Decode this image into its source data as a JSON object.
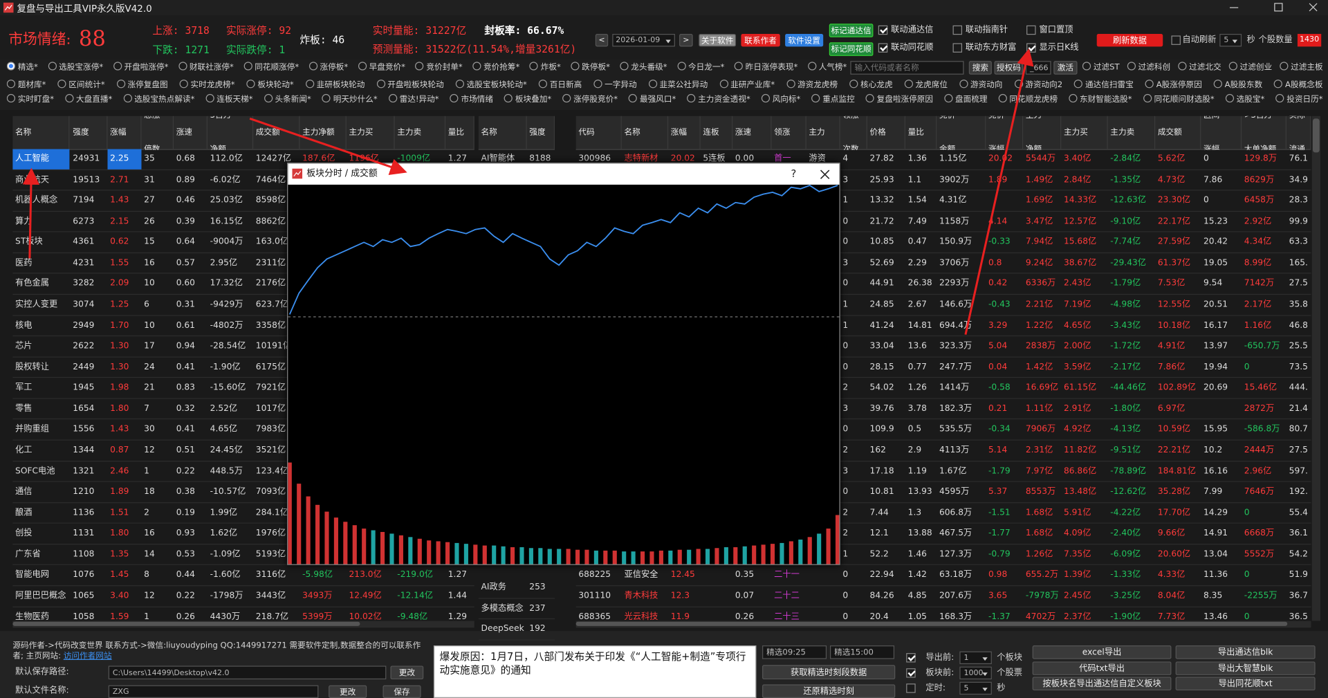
{
  "window": {
    "title": "复盘与导出工具VIP永久版V42.0"
  },
  "header": {
    "sentiment_label": "市场情绪:",
    "sentiment_value": "88",
    "up": "上涨: 3718",
    "limit_up": "实际涨停: 92",
    "down": "下跌: 1271",
    "limit_down": "实际跌停: 1",
    "broken": "炸板: 46",
    "volume_now": "实时量能: 31227亿",
    "seal_rate": "封板率:  66.67%",
    "volume_forecast": "预测量能: 31522亿(11.54%,增量3261亿)"
  },
  "toolbar": {
    "prev": "<",
    "date": "2026-01-09",
    "next": ">",
    "about": "关于软件",
    "contact": "联系作者",
    "settings": "软件设置",
    "mark_tdx": "标记通达信",
    "mark_ths": "标记同花顺",
    "checks": [
      {
        "label": "联动通达信",
        "checked": true
      },
      {
        "label": "联动同花顺",
        "checked": true
      },
      {
        "label": "联动指南针",
        "checked": false
      },
      {
        "label": "联动东方财富",
        "checked": false
      },
      {
        "label": "窗口置顶",
        "checked": false
      },
      {
        "label": "显示日K线",
        "checked": true
      }
    ],
    "refresh": "刷新数据",
    "auto_refresh": "自动刷新",
    "interval": "5",
    "seconds": "秒",
    "stock_count_label": "个股数量",
    "stock_count": "1430"
  },
  "menu": {
    "row1": [
      "精选*",
      "选股宝涨停*",
      "开盘啦涨停*",
      "财联社涨停*",
      "同花顺涨停*",
      "涨停板*",
      "早盘竞价*",
      "竞价封单*",
      "竞价抢筹*",
      "炸板*",
      "跌停板*",
      "龙头番级*",
      "今日龙一*",
      "昨日涨停表现*",
      "人气榜*"
    ],
    "row1_selected": 0,
    "search_placeholder": "输入代码或者名称",
    "search": "搜索",
    "auth_label": "授权码",
    "auth_code": "_666",
    "activate": "激活",
    "filters": [
      "过滤ST",
      "过滤科创",
      "过滤北交",
      "过滤创业",
      "过滤主板"
    ],
    "row2": [
      "题材库*",
      "区间统计*",
      "涨停复盘图",
      "实时龙虎榜*",
      "板块轮动*",
      "韭研板块轮动",
      "开盘啦板块轮动",
      "选股宝板块轮动*",
      "百日新高",
      "一字异动",
      "韭菜公社异动",
      "韭研产业库*",
      "游资龙虎榜",
      "核心龙虎",
      "龙虎席位",
      "游资动向",
      "游资动向2",
      "通达信扫雷宝",
      "A股涨停原因",
      "A股股东数",
      "A股概念板"
    ],
    "row3": [
      "实时盯盘*",
      "大盘直播*",
      "选股宝热点解读*",
      "连板天梯*",
      "头条新闻*",
      "明天炒什么*",
      "雷达!异动*",
      "市场情绪",
      "板块叠加*",
      "涨停股竞价*",
      "最强风口*",
      "主力资金透视*",
      "风向标*",
      "重点监控",
      "复盘啦涨停原因",
      "盘面梳理",
      "同花顺龙虎榜",
      "东财智能选股*",
      "同花顺问财选股*",
      "选股宝*",
      "投资日历*"
    ]
  },
  "sector_table": {
    "headers": [
      "名称",
      "强度",
      "涨幅",
      "总涨\n停数",
      "涨速",
      "3百万\n净额",
      "成交额",
      "主力净额",
      "主力买",
      "主力卖",
      "量比"
    ],
    "rows": [
      [
        "人工智能",
        "24931",
        "2.25",
        "35",
        "0.68",
        "112.0亿",
        "12427亿",
        "187.6亿",
        "1196亿",
        "-1009亿",
        "1.27"
      ],
      [
        "商业航天",
        "19513",
        "2.71",
        "31",
        "0.89",
        "-6.02亿",
        "7464亿",
        null,
        null,
        null,
        null
      ],
      [
        "机器人概念",
        "7194",
        "1.43",
        "27",
        "0.46",
        "25.03亿",
        "8598亿",
        null,
        null,
        null,
        null
      ],
      [
        "算力",
        "6273",
        "2.15",
        "26",
        "0.39",
        "16.15亿",
        "8862亿",
        null,
        null,
        null,
        null
      ],
      [
        "ST板块",
        "4361",
        "0.62",
        "15",
        "0.64",
        "-9004万",
        "163.0亿",
        null,
        null,
        null,
        null
      ],
      [
        "医药",
        "4231",
        "1.55",
        "16",
        "0.57",
        "2.95亿",
        "2311亿",
        null,
        null,
        null,
        null
      ],
      [
        "有色金属",
        "3282",
        "2.09",
        "10",
        "0.60",
        "17.32亿",
        "2176亿",
        null,
        null,
        null,
        null
      ],
      [
        "实控人变更",
        "3074",
        "1.25",
        "6",
        "0.31",
        "-9429万",
        "623.7亿",
        null,
        null,
        null,
        null
      ],
      [
        "核电",
        "2949",
        "1.70",
        "10",
        "0.61",
        "-4802万",
        "3358亿",
        null,
        null,
        null,
        null
      ],
      [
        "芯片",
        "2622",
        "1.30",
        "17",
        "0.94",
        "-28.54亿",
        "10191亿",
        null,
        null,
        null,
        null
      ],
      [
        "股权转让",
        "2449",
        "1.30",
        "24",
        "0.41",
        "-1.90亿",
        "6175亿",
        null,
        null,
        null,
        null
      ],
      [
        "军工",
        "1945",
        "1.98",
        "21",
        "0.83",
        "-15.60亿",
        "7921亿",
        null,
        null,
        null,
        null
      ],
      [
        "零售",
        "1654",
        "1.80",
        "7",
        "0.32",
        "2.52亿",
        "1017亿",
        null,
        null,
        null,
        null
      ],
      [
        "并购重组",
        "1556",
        "1.43",
        "30",
        "0.41",
        "4.65亿",
        "7983亿",
        null,
        null,
        null,
        null
      ],
      [
        "化工",
        "1344",
        "0.87",
        "12",
        "0.51",
        "24.45亿",
        "3521亿",
        null,
        null,
        null,
        null
      ],
      [
        "SOFC电池",
        "1321",
        "2.46",
        "1",
        "0.22",
        "448.5万",
        "123.4亿",
        null,
        null,
        null,
        null
      ],
      [
        "通信",
        "1210",
        "1.89",
        "18",
        "0.38",
        "-10.57亿",
        "7093亿",
        null,
        null,
        null,
        null
      ],
      [
        "酿酒",
        "1136",
        "1.51",
        "2",
        "0.19",
        "1.99亿",
        "284.1亿",
        null,
        null,
        null,
        null
      ],
      [
        "创投",
        "1131",
        "1.80",
        "16",
        "0.93",
        "1.62亿",
        "1976亿",
        null,
        null,
        null,
        null
      ],
      [
        "广东省",
        "1108",
        "1.35",
        "14",
        "0.53",
        "-1.09亿",
        "5193亿",
        null,
        null,
        null,
        null
      ],
      [
        "智能电网",
        "1076",
        "1.45",
        "8",
        "0.44",
        "-1.60亿",
        "3116亿",
        "-5.98亿",
        "213.0亿",
        "-219.0亿",
        "1.27"
      ],
      [
        "阿里巴巴概念",
        "1065",
        "3.40",
        "12",
        "0.22",
        "-1798万",
        "3443亿",
        "3493万",
        "12.49亿",
        "-12.14亿",
        "1.44"
      ],
      [
        "生物医药",
        "1058",
        "1.59",
        "1",
        "0.26",
        "4430万",
        "218.7亿",
        "5399万",
        "10.02亿",
        "-9.48亿",
        "1.29"
      ]
    ]
  },
  "sub_table": {
    "headers": [
      "名称",
      "强度"
    ],
    "rows_top": [
      [
        "AI智能体",
        "8188"
      ]
    ],
    "rows_bottom": [
      [
        "AI政务",
        "253"
      ],
      [
        "多模态概念",
        "237"
      ],
      [
        "DeepSeek",
        "192"
      ]
    ]
  },
  "stock_table": {
    "headers": [
      "代码",
      "名称",
      "涨幅",
      "连板",
      "涨速",
      "领涨",
      "主力",
      "领涨\n次数",
      "价格",
      "量比",
      "竞价\n金额",
      "竞价\n涨幅",
      "主力\n净额",
      "主力买",
      "主力卖",
      "成交额",
      "区间\n涨幅",
      ">3百万\n大单净额",
      "实际\n流通"
    ],
    "rows": [
      [
        "300986",
        "志特新材",
        "20.02",
        "5连板",
        "0.00",
        "首一",
        "游资",
        "4",
        "27.82",
        "1.36",
        "1.15亿",
        "20.02",
        "5544万",
        "3.40亿",
        "-2.84亿",
        "5.62亿",
        "0",
        "129.8万",
        "76.1"
      ],
      [
        null,
        null,
        null,
        null,
        null,
        null,
        null,
        "3",
        "25.93",
        "1.1",
        "3902万",
        "1.89",
        "1.49亿",
        "2.84亿",
        "-1.35亿",
        "4.73亿",
        "7.86",
        "8629万",
        "34.9"
      ],
      [
        null,
        null,
        null,
        null,
        null,
        null,
        null,
        "1",
        "13.32",
        "1.54",
        "4.31亿",
        null,
        "1.69亿",
        "14.33亿",
        "-12.63亿",
        "23.30亿",
        "0",
        "6458万",
        "28.3"
      ],
      [
        null,
        null,
        null,
        null,
        null,
        null,
        null,
        "0",
        "21.72",
        "7.49",
        "1158万",
        "4.14",
        "3.47亿",
        "12.57亿",
        "-9.10亿",
        "22.17亿",
        "15.23",
        "2.92亿",
        "99.9"
      ],
      [
        null,
        null,
        null,
        null,
        null,
        null,
        null,
        "0",
        "10.85",
        "0.47",
        "150.9万",
        "-0.33",
        "7.94亿",
        "15.68亿",
        "-7.74亿",
        "27.59亿",
        "20.42",
        "4.34亿",
        "63.3"
      ],
      [
        null,
        null,
        null,
        null,
        null,
        null,
        null,
        "3",
        "52.69",
        "2.29",
        "3706万",
        "0.8",
        "9.24亿",
        "38.67亿",
        "-29.43亿",
        "61.37亿",
        "19.05",
        "8.99亿",
        "165."
      ],
      [
        null,
        null,
        null,
        null,
        null,
        null,
        null,
        "0",
        "44.91",
        "26.38",
        "2293万",
        "0.42",
        "6336万",
        "2.43亿",
        "-1.79亿",
        "7.53亿",
        "9.54",
        "7142万",
        "27.5"
      ],
      [
        null,
        null,
        null,
        null,
        null,
        null,
        null,
        "1",
        "24.85",
        "2.67",
        "146.6万",
        "-0.43",
        "2.21亿",
        "7.19亿",
        "-4.98亿",
        "12.55亿",
        "20.51",
        "2.17亿",
        "35.8"
      ],
      [
        null,
        null,
        null,
        null,
        null,
        null,
        null,
        "1",
        "41.24",
        "14.81",
        "694.4万",
        "3.29",
        "1.22亿",
        "4.65亿",
        "-3.43亿",
        "10.18亿",
        "16.17",
        "1.16亿",
        "46.8"
      ],
      [
        null,
        null,
        null,
        null,
        null,
        null,
        null,
        "0",
        "33.04",
        "13.6",
        "323.3万",
        "5.04",
        "2838万",
        "2.00亿",
        "-1.72亿",
        "4.91亿",
        "13.97",
        "-650.7万",
        "25.5"
      ],
      [
        null,
        null,
        null,
        null,
        null,
        null,
        null,
        "0",
        "28.15",
        "0.77",
        "247.7万",
        "0.04",
        "1.42亿",
        "3.59亿",
        "-2.17亿",
        "7.86亿",
        "19.94",
        "0",
        "73.5"
      ],
      [
        null,
        null,
        null,
        null,
        null,
        null,
        null,
        "2",
        "54.02",
        "1.26",
        "1414万",
        "-0.58",
        "16.69亿",
        "61.15亿",
        "-44.46亿",
        "102.89亿",
        "20.69",
        "15.46亿",
        "444."
      ],
      [
        null,
        null,
        null,
        null,
        null,
        null,
        null,
        "3",
        "39.76",
        "3.78",
        "182.3万",
        "0.21",
        "1.11亿",
        "2.91亿",
        "-1.80亿",
        "6.97亿",
        null,
        "2872万",
        "21.4"
      ],
      [
        null,
        null,
        null,
        null,
        null,
        null,
        null,
        "0",
        "109.9",
        "0.5",
        "535.5万",
        "-0.34",
        "7906万",
        "4.92亿",
        "-4.13亿",
        "10.59亿",
        "15.95",
        "-586.8万",
        "80.7"
      ],
      [
        null,
        null,
        null,
        null,
        null,
        null,
        null,
        "2",
        "162",
        "2.9",
        "4113万",
        "5.14",
        "2.31亿",
        "11.82亿",
        "-9.51亿",
        "22.21亿",
        "10.2",
        "2444万",
        "27.5"
      ],
      [
        null,
        null,
        null,
        null,
        null,
        null,
        null,
        "3",
        "17.18",
        "1.19",
        "1.67亿",
        "-1.79",
        "7.97亿",
        "86.86亿",
        "-78.89亿",
        "184.81亿",
        "16.16",
        "2.96亿",
        "597."
      ],
      [
        null,
        null,
        null,
        null,
        null,
        null,
        null,
        "0",
        "10.81",
        "13.93",
        "4595万",
        "5.37",
        "8553万",
        "13.48亿",
        "-12.62亿",
        "35.28亿",
        "7.99",
        "7646万",
        "192."
      ],
      [
        null,
        null,
        null,
        null,
        null,
        null,
        null,
        "2",
        "7.44",
        "1.3",
        "606.8万",
        "-1.51",
        "1.68亿",
        "5.91亿",
        "-4.22亿",
        "17.70亿",
        "14.29",
        "0",
        "55.4"
      ],
      [
        null,
        null,
        null,
        null,
        null,
        null,
        null,
        "2",
        "12.1",
        "13.88",
        "467.5万",
        "-1.77",
        "1.68亿",
        "4.09亿",
        "-2.40亿",
        "9.66亿",
        "14.91",
        "6668万",
        "36.1"
      ],
      [
        null,
        null,
        null,
        null,
        null,
        null,
        null,
        "1",
        "52.2",
        "1.46",
        "127.3万",
        "-0.79",
        "1.26亿",
        "7.35亿",
        "-6.09亿",
        "20.60亿",
        "13.04",
        "5552万",
        "54.2"
      ],
      [
        "688225",
        "亚信安全",
        "12.45",
        null,
        "0.35",
        "二十一",
        null,
        "0",
        "22.94",
        "1.42",
        "63.18万",
        "0.98",
        "655.2万",
        "1.39亿",
        "-1.33亿",
        "4.33亿",
        "11.36",
        "0",
        "51.9"
      ],
      [
        "301110",
        "青木科技",
        "12.3",
        null,
        "0.07",
        "二十二",
        null,
        "0",
        "84.26",
        "4.85",
        "207.6万",
        "3.65",
        "-7978万",
        "2.45亿",
        "-3.25亿",
        "8.04亿",
        "8.35",
        "-2255万",
        "36.7"
      ],
      [
        "688365",
        "光云科技",
        "11.9",
        null,
        "0.26",
        "二十三",
        null,
        "0",
        "20.4",
        "1.05",
        "168.3万",
        "-1.37",
        "4702万",
        "2.37亿",
        "-1.90亿",
        "7.73亿",
        "13.46",
        "0",
        "36.5"
      ]
    ]
  },
  "popup": {
    "title": "板块分时 / 成交额",
    "help": "?",
    "chart": {
      "type": "line",
      "line_color": "#3b8ff0",
      "ylim": [
        0,
        100
      ],
      "line_values": [
        65.8,
        71.4,
        74.8,
        78.1,
        80.4,
        81.5,
        82.6,
        83.7,
        84.8,
        83.7,
        85.5,
        84.8,
        85.9,
        83.7,
        84.2,
        85.9,
        87.1,
        88.2,
        87.7,
        87.1,
        88.2,
        88.6,
        86.4,
        84.8,
        87.1,
        85.9,
        84.8,
        83.7,
        80.4,
        78.8,
        81.5,
        82.6,
        84.8,
        83.7,
        85.9,
        88.6,
        87.7,
        87.1,
        89.3,
        90.0,
        90.8,
        90.0,
        92.6,
        91.5,
        93.8,
        92.6,
        94.9,
        93.8,
        95.3,
        94.9,
        96.7,
        97.5,
        98.0,
        97.1,
        99.3,
        98.9,
        99.8,
        98.2,
        98.9,
        99.8
      ],
      "bar_ylim": [
        0,
        150
      ],
      "bar_up_color": "#d03232",
      "bar_down_color": "#1fa3a3",
      "bar_values": [
        120,
        95,
        80,
        70,
        62,
        55,
        50,
        46,
        42,
        40,
        38,
        36,
        34,
        32,
        30,
        28,
        27,
        26,
        25,
        24,
        23,
        22,
        22,
        21,
        20,
        20,
        19,
        19,
        18,
        18,
        18,
        17,
        17,
        16,
        16,
        16,
        15,
        15,
        15,
        15,
        16,
        16,
        17,
        17,
        18,
        18,
        19,
        20,
        20,
        21,
        22,
        23,
        24,
        25,
        27,
        29,
        32,
        36,
        42,
        58
      ]
    }
  },
  "bottom": {
    "author_note": "源码作者->代码改变世界 联系方式->微信:liuyoudyping QQ:1449917271 需要软件定制,数据整合的可以联系作者; 主页网站: ",
    "site_link": "访问作者网站",
    "save_path_label": "默认保存路径:",
    "save_path": "C:\\Users\\14499\\Desktop\\v42.0",
    "change": "更改",
    "file_name_label": "默认文件名称:",
    "file_name": "ZXG",
    "save": "保存",
    "reason": "爆发原因：1月7日，八部门发布关于印发《“人工智能+制造”专项行动实施意见》的通知",
    "time_start": "精选09:25",
    "time_end": "精选15:00",
    "fetch_period": "获取精选时刻段数据",
    "restore": "还原精选时刻",
    "export_checks": [
      {
        "label": "导出前:",
        "value": "1",
        "unit": "个板块",
        "checked": true
      },
      {
        "label": "板块前:",
        "value": "1000",
        "unit": "个股票",
        "checked": true
      },
      {
        "label": "定时:",
        "value": "5",
        "unit": "秒",
        "checked": false
      }
    ],
    "buttons_left": [
      "excel导出",
      "代码txt导出",
      "按板块名导出通达信自定义板块"
    ],
    "buttons_right": [
      "导出通达信blk",
      "导出大智慧blk",
      "导出同花顺txt"
    ]
  }
}
